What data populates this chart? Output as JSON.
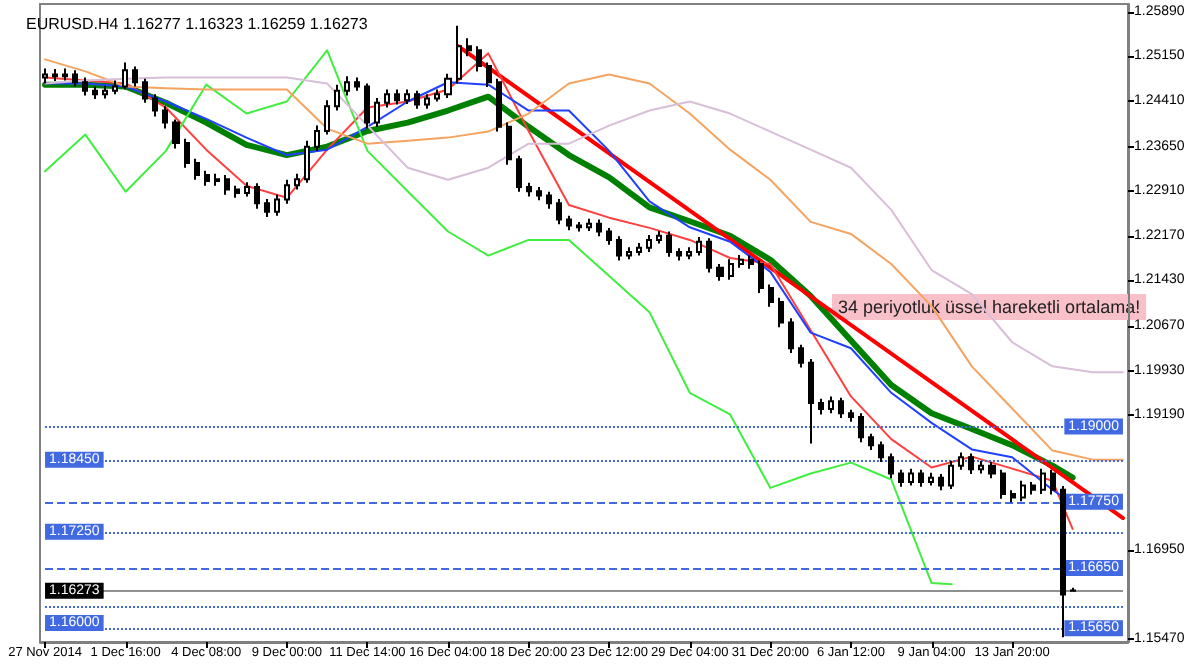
{
  "chart_data": {
    "type": "candlestick",
    "title": "EURUSD.H4 1.16277 1.16323 1.16259 1.16273",
    "categories": [
      "27 Nov 2014",
      null,
      null,
      null,
      null,
      null,
      null,
      null,
      "1 Dec 16:00",
      null,
      null,
      null,
      null,
      null,
      null,
      null,
      "4 Dec 08:00",
      null,
      null,
      null,
      null,
      null,
      null,
      null,
      "9 Dec 00:00",
      null,
      null,
      null,
      null,
      null,
      null,
      null,
      "11 Dec 14:00",
      null,
      null,
      null,
      null,
      null,
      null,
      null,
      "16 Dec 04:00",
      null,
      null,
      null,
      null,
      null,
      null,
      null,
      "18 Dec 20:00",
      null,
      null,
      null,
      null,
      null,
      null,
      null,
      "23 Dec 12:00",
      null,
      null,
      null,
      null,
      null,
      null,
      null,
      "29 Dec 04:00",
      null,
      null,
      null,
      null,
      null,
      null,
      null,
      "31 Dec 20:00",
      null,
      null,
      null,
      null,
      null,
      null,
      null,
      "6 Jan 12:00",
      null,
      null,
      null,
      null,
      null,
      null,
      null,
      "9 Jan 04:00",
      null,
      null,
      null,
      null,
      null,
      null,
      null,
      "13 Jan 20:00",
      null,
      null,
      null,
      null,
      null,
      null,
      null,
      null,
      null,
      null,
      null
    ],
    "color": "#000000",
    "ohlc": [
      [
        1.248,
        1.2495,
        1.247,
        1.2485
      ],
      [
        1.2485,
        1.2494,
        1.2474,
        1.2482
      ],
      [
        1.2482,
        1.2495,
        1.2475,
        1.2485
      ],
      [
        1.2485,
        1.2492,
        1.2465,
        1.2472
      ],
      [
        1.2472,
        1.248,
        1.245,
        1.2458
      ],
      [
        1.2458,
        1.2465,
        1.2444,
        1.2452
      ],
      [
        1.2452,
        1.2466,
        1.2445,
        1.2458
      ],
      [
        1.2458,
        1.2475,
        1.2452,
        1.2465
      ],
      [
        1.2465,
        1.2505,
        1.246,
        1.2492
      ],
      [
        1.2492,
        1.2498,
        1.2465,
        1.2472
      ],
      [
        1.2472,
        1.2478,
        1.2438,
        1.2445
      ],
      [
        1.2445,
        1.2452,
        1.2415,
        1.2425
      ],
      [
        1.2425,
        1.2432,
        1.2395,
        1.2405
      ],
      [
        1.2405,
        1.241,
        1.2362,
        1.2371
      ],
      [
        1.2371,
        1.2378,
        1.233,
        1.2338
      ],
      [
        1.2338,
        1.2345,
        1.231,
        1.2318
      ],
      [
        1.2318,
        1.2325,
        1.23,
        1.2308
      ],
      [
        1.2308,
        1.232,
        1.23,
        1.2311
      ],
      [
        1.2311,
        1.2318,
        1.2285,
        1.2294
      ],
      [
        1.2294,
        1.23,
        1.228,
        1.2288
      ],
      [
        1.2288,
        1.2306,
        1.2282,
        1.2298
      ],
      [
        1.2298,
        1.2304,
        1.2262,
        1.2271
      ],
      [
        1.2271,
        1.2278,
        1.2248,
        1.2257
      ],
      [
        1.2257,
        1.2285,
        1.225,
        1.2277
      ],
      [
        1.2277,
        1.231,
        1.227,
        1.2301
      ],
      [
        1.2301,
        1.232,
        1.2294,
        1.2311
      ],
      [
        1.2311,
        1.2375,
        1.2305,
        1.2365
      ],
      [
        1.2365,
        1.24,
        1.2358,
        1.2391
      ],
      [
        1.2391,
        1.2442,
        1.2385,
        1.2432
      ],
      [
        1.2432,
        1.2468,
        1.2425,
        1.2458
      ],
      [
        1.2458,
        1.2482,
        1.245,
        1.2472
      ],
      [
        1.2472,
        1.248,
        1.2458,
        1.2465
      ],
      [
        1.2465,
        1.247,
        1.2395,
        1.2405
      ],
      [
        1.2405,
        1.2446,
        1.2398,
        1.2438
      ],
      [
        1.2438,
        1.246,
        1.243,
        1.2452
      ],
      [
        1.2452,
        1.246,
        1.2435,
        1.2442
      ],
      [
        1.2442,
        1.246,
        1.2436,
        1.2452
      ],
      [
        1.2452,
        1.2458,
        1.2428,
        1.2435
      ],
      [
        1.2435,
        1.2452,
        1.2428,
        1.2445
      ],
      [
        1.2445,
        1.246,
        1.244,
        1.2452
      ],
      [
        1.2452,
        1.2486,
        1.2446,
        1.2478
      ],
      [
        1.2478,
        1.2566,
        1.247,
        1.2532
      ],
      [
        1.2532,
        1.2545,
        1.2515,
        1.2525
      ],
      [
        1.2525,
        1.2532,
        1.249,
        1.2499
      ],
      [
        1.2499,
        1.2505,
        1.2464,
        1.2472
      ],
      [
        1.2472,
        1.2478,
        1.239,
        1.2398
      ],
      [
        1.2398,
        1.2405,
        1.2335,
        1.2344
      ],
      [
        1.2344,
        1.235,
        1.229,
        1.2298
      ],
      [
        1.2298,
        1.2305,
        1.2282,
        1.2291
      ],
      [
        1.2291,
        1.2298,
        1.2276,
        1.2284
      ],
      [
        1.2284,
        1.229,
        1.2262,
        1.2271
      ],
      [
        1.2271,
        1.2278,
        1.2236,
        1.2244
      ],
      [
        1.2244,
        1.225,
        1.2226,
        1.2234
      ],
      [
        1.2234,
        1.224,
        1.2224,
        1.2231
      ],
      [
        1.2231,
        1.2245,
        1.2225,
        1.2237
      ],
      [
        1.2237,
        1.2244,
        1.2216,
        1.2224
      ],
      [
        1.2224,
        1.223,
        1.2202,
        1.221
      ],
      [
        1.221,
        1.2216,
        1.2176,
        1.2184
      ],
      [
        1.2184,
        1.2198,
        1.2178,
        1.219
      ],
      [
        1.219,
        1.2205,
        1.2184,
        1.2197
      ],
      [
        1.2197,
        1.2218,
        1.219,
        1.221
      ],
      [
        1.221,
        1.2225,
        1.2204,
        1.2217
      ],
      [
        1.2217,
        1.2224,
        1.2182,
        1.219
      ],
      [
        1.219,
        1.2196,
        1.2176,
        1.2184
      ],
      [
        1.2184,
        1.2198,
        1.2178,
        1.219
      ],
      [
        1.219,
        1.2215,
        1.2184,
        1.2207
      ],
      [
        1.2207,
        1.2213,
        1.2156,
        1.2164
      ],
      [
        1.2164,
        1.217,
        1.2142,
        1.215
      ],
      [
        1.215,
        1.2178,
        1.2144,
        1.217
      ],
      [
        1.217,
        1.2185,
        1.2164,
        1.2177
      ],
      [
        1.2177,
        1.2184,
        1.2162,
        1.217
      ],
      [
        1.217,
        1.2176,
        1.2122,
        1.213
      ],
      [
        1.213,
        1.2136,
        1.2099,
        1.2107
      ],
      [
        1.2107,
        1.2114,
        1.2065,
        1.2073
      ],
      [
        1.2073,
        1.208,
        1.2022,
        1.203
      ],
      [
        1.203,
        1.2036,
        1.1998,
        1.2006
      ],
      [
        1.2006,
        1.2012,
        1.1872,
        1.1939
      ],
      [
        1.1939,
        1.1946,
        1.192,
        1.1929
      ],
      [
        1.1929,
        1.195,
        1.1922,
        1.1942
      ],
      [
        1.1942,
        1.1948,
        1.1914,
        1.1922
      ],
      [
        1.1922,
        1.1928,
        1.1908,
        1.1916
      ],
      [
        1.1916,
        1.1922,
        1.1874,
        1.1882
      ],
      [
        1.1882,
        1.1888,
        1.1861,
        1.1869
      ],
      [
        1.1869,
        1.1875,
        1.1841,
        1.1849
      ],
      [
        1.1849,
        1.1855,
        1.1814,
        1.1822
      ],
      [
        1.1822,
        1.1828,
        1.18,
        1.1808
      ],
      [
        1.1808,
        1.183,
        1.1802,
        1.1822
      ],
      [
        1.1822,
        1.1828,
        1.18,
        1.1808
      ],
      [
        1.1808,
        1.1823,
        1.1802,
        1.1815
      ],
      [
        1.1815,
        1.1821,
        1.1794,
        1.1802
      ],
      [
        1.1802,
        1.1843,
        1.1796,
        1.1835
      ],
      [
        1.1835,
        1.1857,
        1.1828,
        1.1849
      ],
      [
        1.1849,
        1.1855,
        1.1821,
        1.1829
      ],
      [
        1.1829,
        1.1843,
        1.1822,
        1.1835
      ],
      [
        1.1835,
        1.1841,
        1.1814,
        1.1822
      ],
      [
        1.1822,
        1.1828,
        1.178,
        1.1788
      ],
      [
        1.1788,
        1.1794,
        1.1774,
        1.1782
      ],
      [
        1.1782,
        1.181,
        1.1776,
        1.1802
      ],
      [
        1.1802,
        1.1808,
        1.1787,
        1.1795
      ],
      [
        1.1795,
        1.183,
        1.1788,
        1.1822
      ],
      [
        1.1822,
        1.1828,
        1.1787,
        1.1795
      ],
      [
        1.1795,
        1.1801,
        1.155,
        1.1621
      ],
      [
        1.16277,
        1.16323,
        1.16259,
        1.16273
      ],
      null,
      null,
      null,
      null,
      null
    ],
    "series": [
      {
        "type": "line",
        "color": "#008000",
        "values": [
          1.2468,
          null,
          null,
          null,
          1.2468,
          null,
          null,
          null,
          1.2465,
          null,
          null,
          null,
          1.2438,
          null,
          null,
          null,
          1.2405,
          null,
          null,
          null,
          1.2368,
          null,
          null,
          null,
          1.2351,
          null,
          null,
          null,
          1.2365,
          null,
          null,
          null,
          1.2391,
          null,
          null,
          null,
          1.2405,
          null,
          null,
          null,
          1.2425,
          null,
          null,
          null,
          1.2448,
          null,
          null,
          null,
          1.2398,
          null,
          null,
          null,
          1.2351,
          null,
          null,
          null,
          1.2314,
          null,
          null,
          null,
          1.2264,
          null,
          null,
          null,
          1.2241,
          null,
          null,
          null,
          1.2217,
          null,
          null,
          null,
          1.2177,
          null,
          null,
          null,
          1.2117,
          null,
          null,
          null,
          1.2043,
          null,
          null,
          null,
          1.1969,
          null,
          null,
          null,
          1.1922,
          null,
          null,
          null,
          1.1896,
          null,
          null,
          null,
          1.1869,
          null,
          null,
          null,
          1.1835,
          null,
          1.1815,
          null,
          null,
          null,
          null,
          null
        ]
      },
      {
        "type": "line",
        "color": "#ff0000",
        "values": [
          null,
          null,
          null,
          null,
          null,
          null,
          null,
          null,
          null,
          null,
          null,
          null,
          null,
          null,
          null,
          null,
          null,
          null,
          null,
          null,
          null,
          null,
          null,
          null,
          null,
          null,
          null,
          null,
          null,
          null,
          null,
          null,
          null,
          null,
          null,
          null,
          null,
          null,
          null,
          null,
          null,
          1.2532,
          null,
          null,
          null,
          null,
          null,
          null,
          null,
          null,
          null,
          null,
          null,
          null,
          null,
          null,
          null,
          null,
          null,
          null,
          null,
          null,
          null,
          null,
          null,
          null,
          null,
          null,
          null,
          null,
          null,
          null,
          null,
          null,
          null,
          null,
          null,
          null,
          null,
          null,
          null,
          null,
          null,
          null,
          null,
          null,
          null,
          null,
          null,
          null,
          null,
          null,
          null,
          null,
          null,
          null,
          null,
          null,
          null,
          null,
          null,
          null,
          null,
          null,
          null,
          null,
          null,
          1.1748
        ]
      },
      {
        "type": "line",
        "color": "#ff4040",
        "values": [
          1.248,
          null,
          null,
          null,
          1.2475,
          null,
          null,
          null,
          1.247,
          null,
          null,
          null,
          1.243,
          null,
          null,
          null,
          1.236,
          null,
          null,
          null,
          1.23,
          null,
          null,
          null,
          1.228,
          null,
          null,
          null,
          1.236,
          null,
          null,
          null,
          1.243,
          null,
          null,
          null,
          1.244,
          null,
          null,
          null,
          1.246,
          null,
          null,
          null,
          1.252,
          null,
          null,
          null,
          1.2391,
          null,
          null,
          null,
          1.2268,
          null,
          null,
          null,
          1.2247,
          null,
          null,
          null,
          1.223,
          null,
          null,
          null,
          1.221,
          null,
          null,
          null,
          1.218,
          null,
          null,
          null,
          1.217,
          null,
          null,
          null,
          1.206,
          null,
          null,
          null,
          1.195,
          null,
          null,
          null,
          1.1879,
          null,
          null,
          null,
          1.1832,
          null,
          null,
          null,
          1.185,
          null,
          null,
          null,
          1.183,
          null,
          null,
          null,
          1.181,
          null,
          1.173,
          null,
          null,
          null,
          null,
          null
        ]
      },
      {
        "type": "line",
        "color": "#2040ff",
        "values": [
          1.247,
          null,
          null,
          null,
          1.247,
          null,
          null,
          null,
          1.2465,
          null,
          null,
          null,
          1.244,
          null,
          null,
          null,
          1.2411,
          null,
          null,
          null,
          1.238,
          null,
          null,
          null,
          1.2351,
          null,
          null,
          null,
          1.236,
          null,
          null,
          null,
          1.2398,
          null,
          null,
          null,
          1.244,
          null,
          null,
          null,
          1.2472,
          null,
          null,
          null,
          1.2468,
          null,
          null,
          null,
          1.2425,
          null,
          null,
          null,
          1.2425,
          null,
          null,
          null,
          1.2358,
          null,
          null,
          null,
          1.2274,
          null,
          null,
          null,
          1.2231,
          null,
          null,
          null,
          1.2207,
          null,
          null,
          null,
          1.2157,
          null,
          null,
          null,
          1.2056,
          null,
          null,
          null,
          1.203,
          null,
          null,
          null,
          1.1956,
          null,
          null,
          null,
          1.1906,
          null,
          null,
          null,
          1.1862,
          null,
          null,
          null,
          1.1849,
          null,
          null,
          null,
          1.1795,
          null,
          1.1772,
          null,
          null,
          null,
          null,
          null
        ]
      },
      {
        "type": "line",
        "color": "#40ee40",
        "values": [
          1.2324,
          null,
          null,
          null,
          1.2385,
          null,
          null,
          null,
          1.229,
          null,
          null,
          null,
          1.2358,
          null,
          null,
          null,
          1.2468,
          null,
          null,
          null,
          1.242,
          null,
          null,
          null,
          1.244,
          null,
          null,
          null,
          1.2525,
          null,
          null,
          null,
          1.2358,
          null,
          null,
          null,
          1.2291,
          null,
          null,
          null,
          1.2224,
          null,
          null,
          null,
          1.2184,
          null,
          null,
          null,
          1.221,
          null,
          null,
          null,
          1.221,
          null,
          null,
          null,
          1.215,
          null,
          null,
          null,
          1.209,
          null,
          null,
          null,
          1.1956,
          null,
          null,
          null,
          1.192,
          null,
          null,
          null,
          1.1798,
          null,
          null,
          null,
          1.1822,
          null,
          null,
          null,
          1.184,
          null,
          null,
          null,
          1.1812,
          null,
          null,
          null,
          1.164,
          null,
          1.1638,
          null,
          null,
          null,
          null,
          null,
          null,
          null,
          null,
          null,
          null,
          null,
          null,
          null,
          null,
          null,
          null,
          null
        ]
      },
      {
        "type": "line",
        "color": "#f4a460",
        "values": [
          1.251,
          null,
          null,
          null,
          1.249,
          null,
          null,
          null,
          1.2465,
          null,
          null,
          null,
          1.2462,
          null,
          null,
          null,
          1.246,
          null,
          null,
          null,
          1.246,
          null,
          null,
          null,
          1.246,
          null,
          null,
          null,
          1.2395,
          null,
          null,
          null,
          1.237,
          null,
          null,
          null,
          1.2375,
          null,
          null,
          null,
          1.238,
          null,
          null,
          null,
          1.239,
          null,
          null,
          null,
          1.242,
          null,
          null,
          null,
          1.247,
          null,
          null,
          null,
          1.2485,
          null,
          null,
          null,
          1.247,
          null,
          null,
          null,
          1.242,
          null,
          null,
          null,
          1.236,
          null,
          null,
          null,
          1.231,
          null,
          null,
          null,
          1.224,
          null,
          null,
          null,
          1.222,
          null,
          null,
          null,
          1.217,
          null,
          null,
          null,
          1.21,
          null,
          null,
          null,
          1.2,
          null,
          null,
          null,
          1.193,
          null,
          null,
          null,
          1.186,
          null,
          null,
          null,
          1.1845,
          null,
          null,
          1.1845
        ]
      },
      {
        "type": "line",
        "color": "#d8bfd8",
        "values": [
          1.247,
          null,
          null,
          null,
          1.2475,
          null,
          null,
          null,
          1.2478,
          null,
          null,
          null,
          1.248,
          null,
          null,
          null,
          1.248,
          null,
          null,
          null,
          1.248,
          null,
          null,
          null,
          1.248,
          null,
          null,
          null,
          1.247,
          null,
          null,
          null,
          1.24,
          null,
          null,
          null,
          1.233,
          null,
          null,
          null,
          1.231,
          null,
          null,
          null,
          1.233,
          null,
          null,
          null,
          1.237,
          null,
          null,
          null,
          1.237,
          null,
          null,
          null,
          1.24,
          null,
          null,
          null,
          1.2425,
          null,
          null,
          null,
          1.244,
          null,
          null,
          null,
          1.242,
          null,
          null,
          null,
          1.239,
          null,
          null,
          null,
          1.236,
          null,
          null,
          null,
          1.233,
          null,
          null,
          null,
          1.226,
          null,
          null,
          null,
          1.216,
          null,
          null,
          null,
          1.212,
          null,
          null,
          null,
          1.204,
          null,
          null,
          null,
          1.2,
          null,
          null,
          null,
          1.199,
          null,
          null,
          1.199
        ]
      }
    ],
    "ylim": [
      1.1542,
      1.2602
    ],
    "yticks": [
      {
        "value": 1.2589,
        "label": "1.25890"
      },
      {
        "value": 1.2515,
        "label": "1.25150"
      },
      {
        "value": 1.2441,
        "label": "1.24410"
      },
      {
        "value": 1.2365,
        "label": "1.23650"
      },
      {
        "value": 1.2291,
        "label": "1.22910"
      },
      {
        "value": 1.2217,
        "label": "1.22170"
      },
      {
        "value": 1.2143,
        "label": "1.21430"
      },
      {
        "value": 1.2067,
        "label": "1.20670"
      },
      {
        "value": 1.1993,
        "label": "1.19930"
      },
      {
        "value": 1.1919,
        "label": "1.19190"
      },
      {
        "value": 1.1695,
        "label": "1.16950"
      },
      {
        "value": 1.1547,
        "label": "1.15470"
      }
    ],
    "ref_lines": [
      {
        "axis": "y",
        "value": 1.19,
        "label": "1.19000",
        "color": "#4169e1",
        "line_style": "dotted"
      },
      {
        "axis": "y",
        "value": 1.1845,
        "label": "1.18450",
        "color": "#4169e1",
        "line_style": "dotted"
      },
      {
        "axis": "y",
        "value": 1.1775,
        "label": "1.17750",
        "color": "#4169e1",
        "line_style": "dashed"
      },
      {
        "axis": "y",
        "value": 1.1725,
        "label": "1.17250",
        "color": "#4169e1",
        "line_style": "dotted"
      },
      {
        "axis": "y",
        "value": 1.1665,
        "label": "1.16650",
        "color": "#4169e1",
        "line_style": "dashed"
      },
      {
        "axis": "y",
        "value": 1.16273,
        "label": "1.16273",
        "color": "#909090",
        "line_style": "solid"
      },
      {
        "axis": "y",
        "value": 1.16,
        "label": "1.16000",
        "color": "#4169e1",
        "line_style": "dotted"
      },
      {
        "axis": "y",
        "value": 1.1565,
        "label": "1.15650",
        "color": "#4169e1",
        "line_style": "dotted"
      }
    ],
    "annotations": [
      "34 periyotluk üssel hareketli ortalama!"
    ],
    "grid": false,
    "marker": "none",
    "line_style": "solid"
  }
}
